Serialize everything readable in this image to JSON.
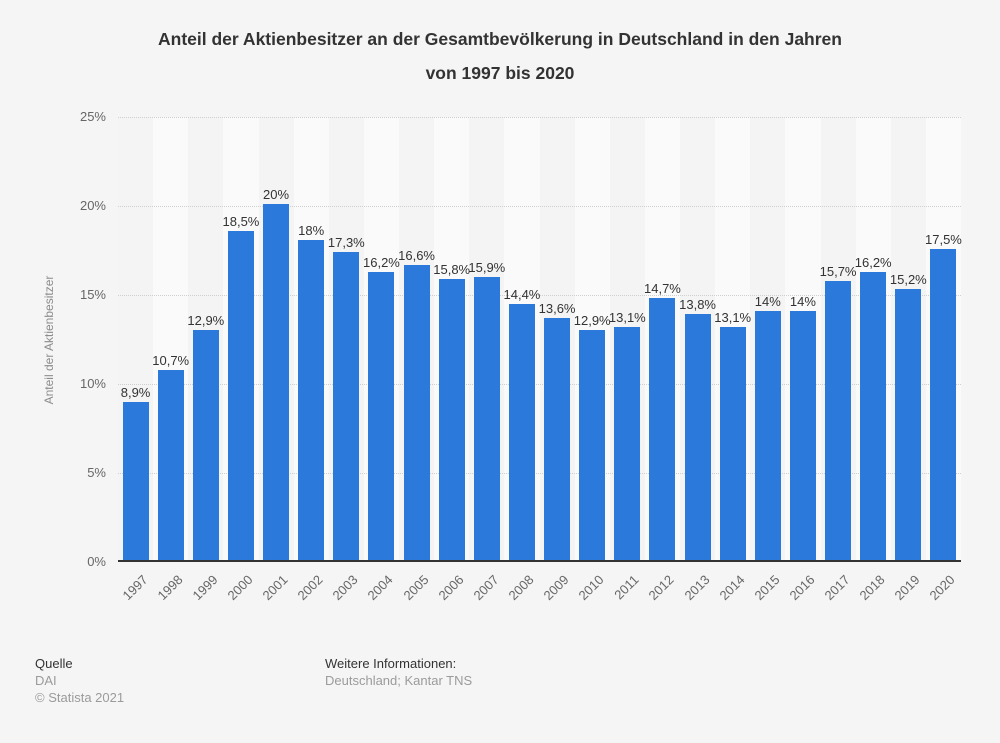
{
  "chart_data": {
    "type": "bar",
    "title": "Anteil der Aktienbesitzer an der Gesamtbevölkerung in Deutschland in den Jahren von 1997 bis 2020",
    "title_lines": [
      "Anteil der Aktienbesitzer an der Gesamtbevölkerung in Deutschland in den Jahren",
      "von 1997 bis 2020"
    ],
    "categories": [
      "1997",
      "1998",
      "1999",
      "2000",
      "2001",
      "2002",
      "2003",
      "2004",
      "2005",
      "2006",
      "2007",
      "2008",
      "2009",
      "2010",
      "2011",
      "2012",
      "2013",
      "2014",
      "2015",
      "2016",
      "2017",
      "2018",
      "2019",
      "2020"
    ],
    "values": [
      8.9,
      10.7,
      12.9,
      18.5,
      20,
      18,
      17.3,
      16.2,
      16.6,
      15.8,
      15.9,
      14.4,
      13.6,
      12.9,
      13.1,
      14.7,
      13.8,
      13.1,
      14,
      14,
      15.7,
      16.2,
      15.2,
      17.5
    ],
    "value_labels": [
      "8,9%",
      "10,7%",
      "12,9%",
      "18,5%",
      "20%",
      "18%",
      "17,3%",
      "16,2%",
      "16,6%",
      "15,8%",
      "15,9%",
      "14,4%",
      "13,6%",
      "12,9%",
      "13,1%",
      "14,7%",
      "13,8%",
      "13,1%",
      "14%",
      "14%",
      "15,7%",
      "16,2%",
      "15,2%",
      "17,5%"
    ],
    "xlabel": "",
    "ylabel": "Anteil der Aktienbesitzer",
    "ylim": [
      0,
      25
    ],
    "yticks": [
      0,
      5,
      10,
      15,
      20,
      25
    ],
    "ytick_labels": [
      "0%",
      "5%",
      "10%",
      "15%",
      "20%",
      "25%"
    ],
    "grid": true,
    "legend": false
  },
  "colors": {
    "bar": "#2b79da",
    "background": "#f5f5f5",
    "stripe_dark": "#f4f4f4",
    "stripe_light": "#fafafa",
    "gridline": "#cfcfcf",
    "axis_line": "#333333"
  },
  "footer": {
    "source_label": "Quelle",
    "source_value": "DAI",
    "copyright": "© Statista 2021",
    "info_label": "Weitere Informationen:",
    "info_value": "Deutschland; Kantar TNS"
  }
}
